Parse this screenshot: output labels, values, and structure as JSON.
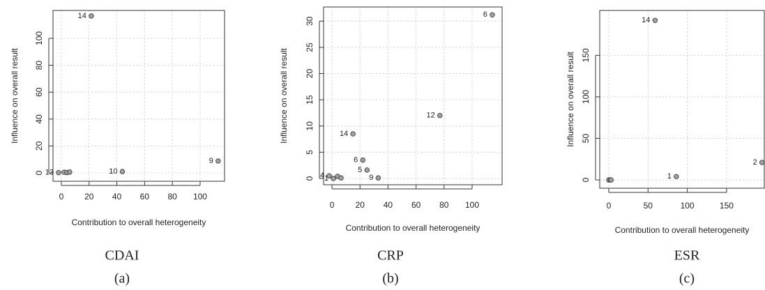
{
  "chart_data": [
    {
      "type": "scatter",
      "xlabel": "Contribution to overall heterogeneity",
      "ylabel": "Influence on overall result",
      "caption": "CDAI",
      "sublabel": "(a)",
      "grid": true,
      "color": "#a0a0a0",
      "xlim": [
        -6,
        117.6
      ],
      "ylim": [
        -6.2,
        120.7
      ],
      "xticks": [
        0,
        20,
        40,
        60,
        80,
        100
      ],
      "yticks": [
        0,
        20,
        40,
        60,
        80,
        100
      ],
      "x": [
        21.6,
        113,
        44,
        -2,
        2,
        4,
        6
      ],
      "values": [
        116.6,
        8.8,
        1,
        0.2,
        0.5,
        0.3,
        0.6
      ],
      "point_labels": [
        "14",
        "9",
        "10",
        "13",
        null,
        null,
        null
      ]
    },
    {
      "type": "scatter",
      "xlabel": "Contribution to overall heterogeneity",
      "ylabel": "Influence on overall result",
      "caption": "CRP",
      "sublabel": "(b)",
      "grid": true,
      "color": "#a0a0a0",
      "xlim": [
        -6,
        121.4
      ],
      "ylim": [
        -1.2,
        32.7
      ],
      "xticks": [
        0,
        20,
        40,
        60,
        80,
        100
      ],
      "yticks": [
        0,
        5,
        10,
        15,
        20,
        25,
        30
      ],
      "x": [
        114.4,
        77,
        15,
        22,
        25,
        33,
        -2,
        1,
        4,
        6.5
      ],
      "values": [
        31.2,
        12,
        8.5,
        3.5,
        1.6,
        0.1,
        0.5,
        0,
        0.4,
        0.1
      ],
      "point_labels": [
        "6",
        "12",
        "14",
        "6",
        "5",
        "9",
        "4",
        "1",
        null,
        null
      ]
    },
    {
      "type": "scatter",
      "xlabel": "Contribution to overall heterogeneity",
      "ylabel": "Influence on overall result",
      "caption": "ESR",
      "sublabel": "(c)",
      "grid": true,
      "color": "#a0a0a0",
      "xlim": [
        -11.5,
        198
      ],
      "ylim": [
        -10,
        204
      ],
      "xticks": [
        0,
        50,
        100,
        150
      ],
      "yticks": [
        0,
        50,
        100,
        150
      ],
      "x": [
        59,
        86,
        195,
        0,
        2,
        3
      ],
      "values": [
        192,
        4,
        21,
        0,
        0,
        0
      ],
      "point_labels": [
        "14",
        "1",
        "2",
        null,
        null,
        null
      ]
    }
  ]
}
